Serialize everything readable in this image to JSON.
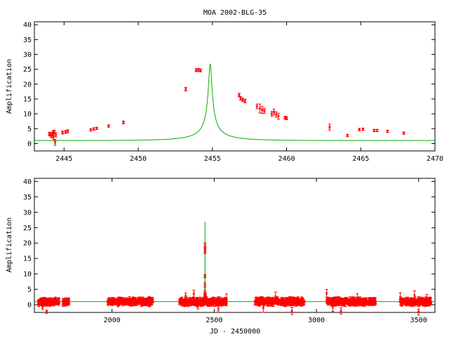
{
  "chart_data": [
    {
      "type": "scatter",
      "title": "MOA 2002-BLG-35",
      "xlabel": "",
      "ylabel": "Amplification",
      "xlim": [
        2443,
        2470
      ],
      "ylim": [
        -2.5,
        41
      ],
      "xticks": [
        2445,
        2450,
        2455,
        2460,
        2465,
        2470
      ],
      "yticks": [
        0,
        5,
        10,
        15,
        20,
        25,
        30,
        35,
        40
      ],
      "model": {
        "name": "",
        "color": "#00b000",
        "t0": 2454.85,
        "tE": 3.25,
        "u0": 0.0372
      },
      "series": [
        {
          "name": "",
          "color": "#ff0000",
          "points": [
            [
              2444.0,
              3.2,
              0.6
            ],
            [
              2444.1,
              3.0,
              0.8
            ],
            [
              2444.2,
              2.7,
              0.9
            ],
            [
              2444.25,
              3.6,
              0.7
            ],
            [
              2444.3,
              2.4,
              1.2
            ],
            [
              2444.35,
              3.9,
              0.6
            ],
            [
              2444.4,
              0.4,
              1.0
            ],
            [
              2444.45,
              2.9,
              0.7
            ],
            [
              2444.9,
              3.7,
              0.5
            ],
            [
              2445.1,
              3.9,
              0.5
            ],
            [
              2445.25,
              4.1,
              0.5
            ],
            [
              2446.8,
              4.6,
              0.4
            ],
            [
              2447.0,
              4.9,
              0.4
            ],
            [
              2447.2,
              5.1,
              0.4
            ],
            [
              2448.0,
              5.9,
              0.4
            ],
            [
              2449.0,
              7.1,
              0.5
            ],
            [
              2453.2,
              18.3,
              0.6
            ],
            [
              2453.9,
              24.7,
              0.5
            ],
            [
              2454.05,
              24.8,
              0.5
            ],
            [
              2454.2,
              24.6,
              0.5
            ],
            [
              2456.8,
              16.3,
              0.6
            ],
            [
              2456.9,
              15.2,
              0.6
            ],
            [
              2457.05,
              14.7,
              0.6
            ],
            [
              2457.2,
              14.3,
              0.6
            ],
            [
              2458.0,
              12.5,
              0.8
            ],
            [
              2458.2,
              11.8,
              1.5
            ],
            [
              2458.35,
              11.3,
              1.2
            ],
            [
              2458.5,
              11.0,
              0.8
            ],
            [
              2459.0,
              10.0,
              0.8
            ],
            [
              2459.15,
              10.6,
              1.0
            ],
            [
              2459.3,
              9.8,
              0.9
            ],
            [
              2459.45,
              9.2,
              1.0
            ],
            [
              2459.9,
              8.7,
              0.5
            ],
            [
              2460.0,
              8.5,
              0.5
            ],
            [
              2462.9,
              5.5,
              1.0
            ],
            [
              2464.1,
              2.7,
              0.4
            ],
            [
              2464.9,
              4.7,
              0.4
            ],
            [
              2465.15,
              4.8,
              0.4
            ],
            [
              2465.9,
              4.4,
              0.4
            ],
            [
              2466.1,
              4.4,
              0.4
            ],
            [
              2466.8,
              4.1,
              0.4
            ],
            [
              2467.9,
              3.5,
              0.4
            ]
          ]
        }
      ]
    },
    {
      "type": "scatter",
      "title": "",
      "xlabel": "JD - 2450000",
      "ylabel": "Amplification",
      "xlim": [
        1620,
        3580
      ],
      "ylim": [
        -2.5,
        41
      ],
      "xticks": [
        2000,
        2500,
        3000,
        3500
      ],
      "yticks": [
        0,
        5,
        10,
        15,
        20,
        25,
        30,
        35,
        40
      ],
      "model": {
        "name": "",
        "color": "#00b000",
        "t0": 2454.85,
        "tE": 3.25,
        "u0": 0.0372
      },
      "series": [
        {
          "name": "",
          "color": "#ff0000",
          "seasons": [
            [
              1640,
              1740
            ],
            [
              1760,
              1790
            ],
            [
              1980,
              2200
            ],
            [
              2330,
              2560
            ],
            [
              2700,
              2940
            ],
            [
              3050,
              3290
            ],
            [
              3410,
              3560
            ]
          ],
          "points": [
            [
              1660,
              -0.8,
              0.8
            ],
            [
              1680,
              -2.3,
              0.5
            ],
            [
              1700,
              1.5,
              0.8
            ],
            [
              1990,
              1.8,
              0.5
            ],
            [
              2040,
              0.9,
              0.6
            ],
            [
              2100,
              0.7,
              0.7
            ],
            [
              2140,
              1.4,
              0.6
            ],
            [
              2360,
              2.8,
              1.0
            ],
            [
              2400,
              3.5,
              1.2
            ],
            [
              2420,
              -0.6,
              0.8
            ],
            [
              2520,
              -1.2,
              0.8
            ],
            [
              2560,
              2.0,
              1.5
            ],
            [
              2740,
              -1.0,
              1.5
            ],
            [
              2800,
              2.6,
              1.5
            ],
            [
              2880,
              -2.0,
              1.2
            ],
            [
              3050,
              3.7,
              1.2
            ],
            [
              3080,
              -0.8,
              1.4
            ],
            [
              3120,
              -2.0,
              1.0
            ],
            [
              3200,
              2.2,
              1.4
            ],
            [
              3410,
              2.4,
              1.5
            ],
            [
              3480,
              3.0,
              1.5
            ],
            [
              3500,
              -2.4,
              1.0
            ],
            [
              3540,
              2.1,
              1.2
            ]
          ]
        }
      ]
    }
  ]
}
